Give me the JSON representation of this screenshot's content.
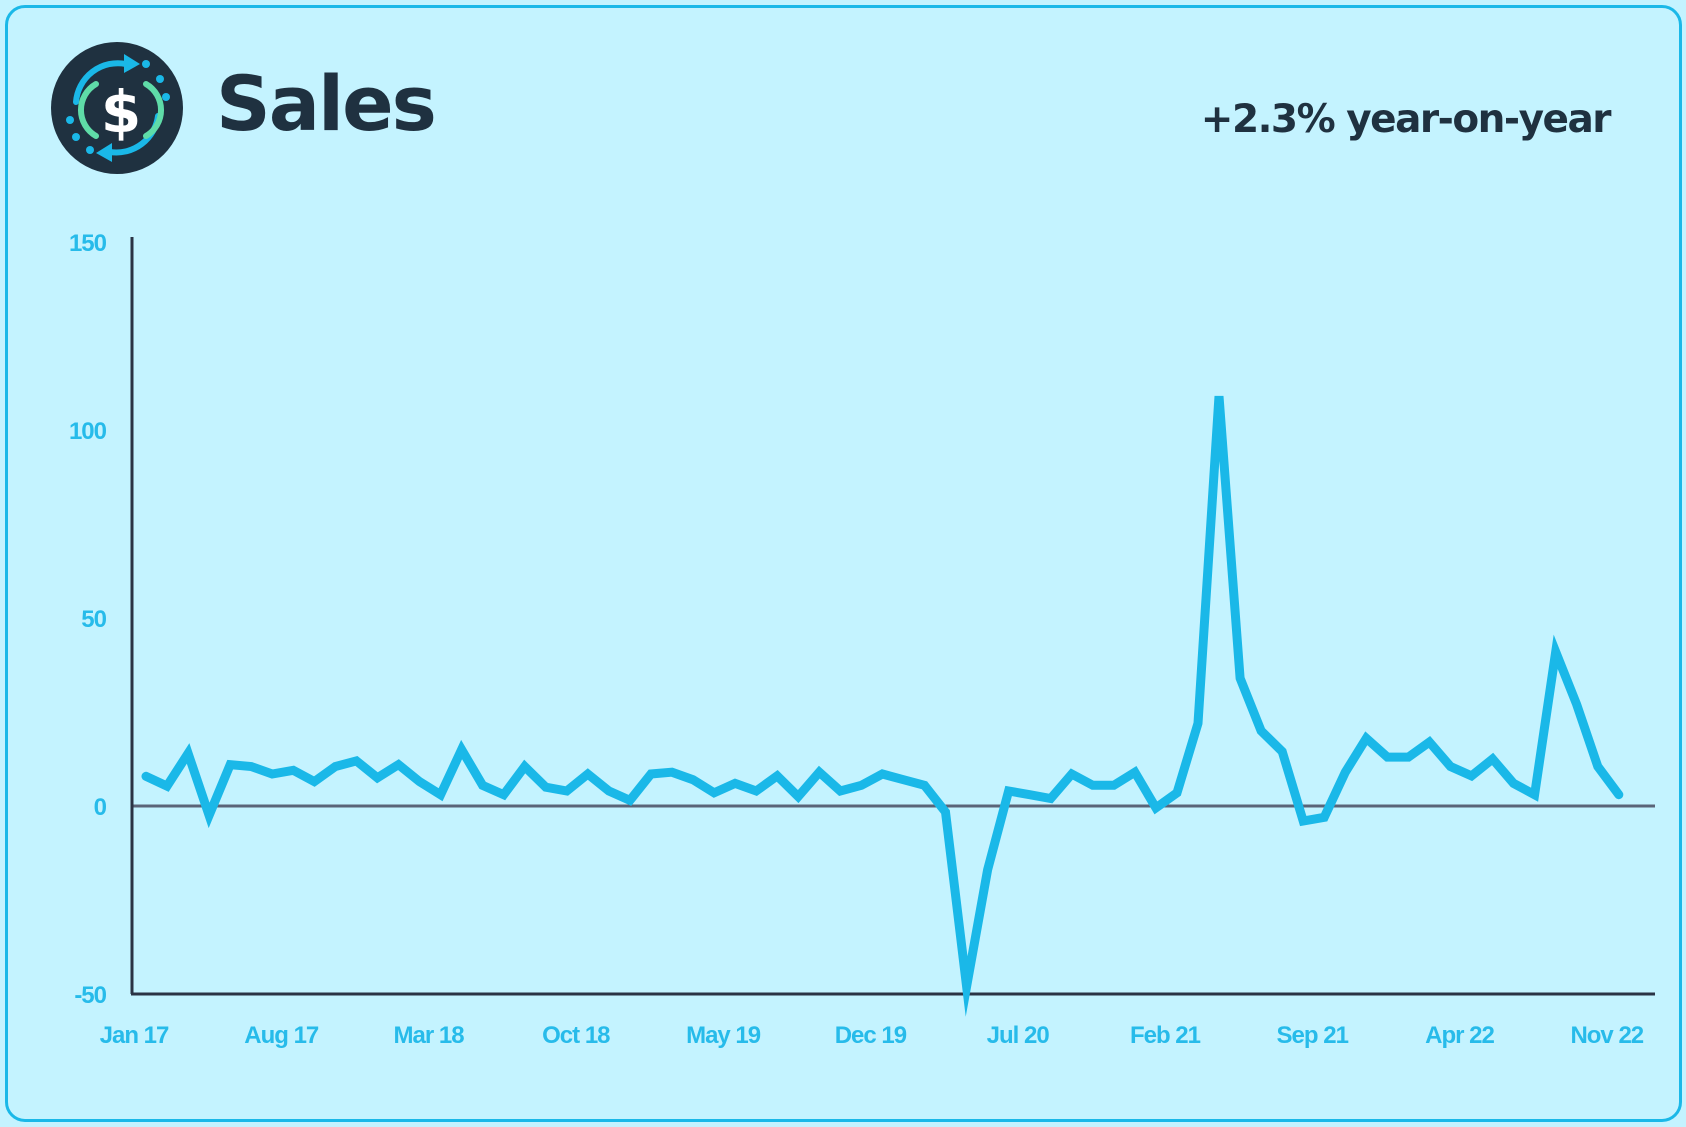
{
  "header": {
    "title": "Sales",
    "yoy_text": "+2.3% year-on-year",
    "icon": "dollar-cycle-icon"
  },
  "colors": {
    "background": "#c4f3ff",
    "border": "#1ab8e8",
    "line": "#1ab8e8",
    "axis": "#2a3344",
    "zero_line": "#5a6478",
    "tick_label": "#27bbea",
    "title": "#1f3140",
    "icon_bg": "#1f3140",
    "icon_arrow": "#1ab8e8",
    "icon_bracket": "#5fdca8",
    "icon_symbol": "#ffffff"
  },
  "chart_data": {
    "type": "line",
    "title": "Sales",
    "subtitle": "+2.3% year-on-year",
    "xlabel": "",
    "ylabel": "",
    "ylim": [
      -50,
      150
    ],
    "yticks": [
      150,
      100,
      50,
      0,
      -50
    ],
    "xtick_labels": [
      "Jan 17",
      "Aug 17",
      "Mar 18",
      "Oct 18",
      "May 19",
      "Dec 19",
      "Jul 20",
      "Feb 21",
      "Sep 21",
      "Apr 22",
      "Nov 22"
    ],
    "xtick_indices": [
      0,
      7,
      14,
      21,
      28,
      35,
      42,
      49,
      56,
      63,
      70
    ],
    "grid": false,
    "legend": null,
    "x": [
      "Jan 17",
      "Feb 17",
      "Mar 17",
      "Apr 17",
      "May 17",
      "Jun 17",
      "Jul 17",
      "Aug 17",
      "Sep 17",
      "Oct 17",
      "Nov 17",
      "Dec 17",
      "Jan 18",
      "Feb 18",
      "Mar 18",
      "Apr 18",
      "May 18",
      "Jun 18",
      "Jul 18",
      "Aug 18",
      "Sep 18",
      "Oct 18",
      "Nov 18",
      "Dec 18",
      "Jan 19",
      "Feb 19",
      "Mar 19",
      "Apr 19",
      "May 19",
      "Jun 19",
      "Jul 19",
      "Aug 19",
      "Sep 19",
      "Oct 19",
      "Nov 19",
      "Dec 19",
      "Jan 20",
      "Feb 20",
      "Mar 20",
      "Apr 20",
      "May 20",
      "Jun 20",
      "Jul 20",
      "Aug 20",
      "Sep 20",
      "Oct 20",
      "Nov 20",
      "Dec 20",
      "Jan 21",
      "Feb 21",
      "Mar 21",
      "Apr 21",
      "May 21",
      "Jun 21",
      "Jul 21",
      "Aug 21",
      "Sep 21",
      "Oct 21",
      "Nov 21",
      "Dec 21",
      "Jan 22",
      "Feb 22",
      "Mar 22",
      "Apr 22",
      "May 22",
      "Jun 22",
      "Jul 22",
      "Aug 22",
      "Sep 22",
      "Oct 22",
      "Nov 22"
    ],
    "series": [
      {
        "name": "Sales",
        "values": [
          7.9,
          5.3,
          14,
          -2.5,
          11,
          10.5,
          8.5,
          9.5,
          6.5,
          10.5,
          12,
          7.5,
          11,
          6.5,
          3,
          15,
          5.5,
          3,
          10.5,
          5,
          4,
          8.5,
          4,
          1.5,
          8.5,
          9,
          7,
          3.5,
          6,
          4,
          8,
          2.5,
          9,
          4,
          5.5,
          8.5,
          7,
          5.5,
          -1.6,
          -48,
          -17,
          4,
          3,
          2,
          8.5,
          5.5,
          5.5,
          9,
          -0.5,
          3.5,
          22,
          109,
          34,
          20,
          14.5,
          -4,
          -3,
          9,
          18,
          13,
          13,
          17,
          10.5,
          8,
          12.5,
          6,
          3,
          41,
          27,
          10.5,
          3
        ]
      }
    ]
  }
}
